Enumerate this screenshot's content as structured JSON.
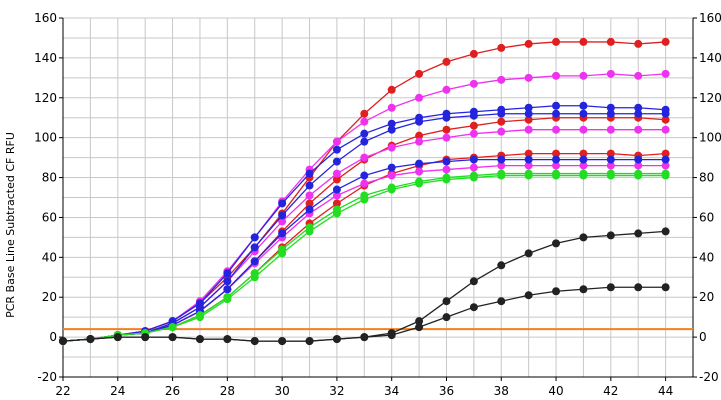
{
  "chart_data": {
    "type": "line",
    "ylabel": "PCR Base Line Subtracted CF RFU",
    "xlim": [
      22,
      45
    ],
    "ylim": [
      -20,
      160
    ],
    "x_ticks": [
      22,
      24,
      26,
      28,
      30,
      32,
      34,
      36,
      38,
      40,
      42,
      44
    ],
    "y_ticks": [
      -20,
      0,
      20,
      40,
      60,
      80,
      100,
      120,
      140,
      160
    ],
    "grid": true,
    "threshold": 4,
    "x": [
      22,
      23,
      24,
      25,
      26,
      27,
      28,
      29,
      30,
      31,
      32,
      33,
      34,
      35,
      36,
      37,
      38,
      39,
      40,
      41,
      42,
      43,
      44
    ],
    "series": [
      {
        "color": "#e02020",
        "values": [
          -2,
          -1,
          1,
          3,
          8,
          17,
          30,
          45,
          62,
          80,
          98,
          112,
          124,
          132,
          138,
          142,
          145,
          147,
          148,
          148,
          148,
          147,
          148
        ]
      },
      {
        "color": "#e02020",
        "values": [
          -2,
          -1,
          1,
          2,
          6,
          13,
          24,
          38,
          53,
          67,
          79,
          89,
          96,
          101,
          104,
          106,
          108,
          109,
          110,
          110,
          110,
          110,
          109
        ]
      },
      {
        "color": "#e02020",
        "values": [
          -2,
          -1,
          1,
          2,
          5,
          11,
          20,
          32,
          45,
          57,
          67,
          76,
          82,
          86,
          89,
          90,
          91,
          92,
          92,
          92,
          92,
          91,
          92
        ]
      },
      {
        "color": "#ee33ee",
        "values": [
          -2,
          -1,
          1,
          3,
          8,
          18,
          33,
          50,
          68,
          84,
          98,
          108,
          115,
          120,
          124,
          127,
          129,
          130,
          131,
          131,
          132,
          131,
          132
        ]
      },
      {
        "color": "#ee33ee",
        "values": [
          -2,
          -1,
          1,
          2,
          7,
          15,
          28,
          43,
          58,
          71,
          82,
          90,
          95,
          98,
          100,
          102,
          103,
          104,
          104,
          104,
          104,
          104,
          104
        ]
      },
      {
        "color": "#ee33ee",
        "values": [
          -2,
          -1,
          1,
          2,
          6,
          13,
          24,
          37,
          50,
          62,
          71,
          77,
          81,
          83,
          84,
          85,
          86,
          86,
          86,
          86,
          86,
          86,
          86
        ]
      },
      {
        "color": "#2424dd",
        "values": [
          -2,
          -1,
          1,
          3,
          8,
          17,
          32,
          50,
          67,
          82,
          94,
          102,
          107,
          110,
          112,
          113,
          114,
          115,
          116,
          116,
          115,
          115,
          114
        ]
      },
      {
        "color": "#2424dd",
        "values": [
          -2,
          -1,
          1,
          2,
          7,
          15,
          28,
          45,
          61,
          76,
          88,
          98,
          104,
          108,
          110,
          111,
          112,
          112,
          112,
          112,
          112,
          112,
          112
        ]
      },
      {
        "color": "#2424dd",
        "values": [
          -2,
          -1,
          1,
          2,
          6,
          13,
          24,
          38,
          52,
          64,
          74,
          81,
          85,
          87,
          88,
          89,
          89,
          89,
          89,
          89,
          89,
          89,
          89
        ]
      },
      {
        "color": "#22dd22",
        "values": [
          -2,
          -1,
          1,
          2,
          5,
          11,
          20,
          32,
          44,
          55,
          64,
          71,
          75,
          78,
          80,
          81,
          82,
          82,
          82,
          82,
          82,
          82,
          82
        ]
      },
      {
        "color": "#22dd22",
        "values": [
          -2,
          -1,
          1,
          2,
          5,
          10,
          19,
          30,
          42,
          53,
          62,
          69,
          74,
          77,
          79,
          80,
          81,
          81,
          81,
          81,
          81,
          81,
          81
        ]
      },
      {
        "color": "#222222",
        "values": [
          -2,
          -1,
          0,
          0,
          0,
          -1,
          -1,
          -2,
          -2,
          -2,
          -1,
          0,
          2,
          8,
          18,
          28,
          36,
          42,
          47,
          50,
          51,
          52,
          53
        ]
      },
      {
        "color": "#222222",
        "values": [
          -2,
          -1,
          0,
          0,
          0,
          -1,
          -1,
          -2,
          -2,
          -2,
          -1,
          0,
          1,
          5,
          10,
          15,
          18,
          21,
          23,
          24,
          25,
          25,
          25
        ]
      }
    ]
  },
  "colors": {
    "threshold": "#f08020",
    "grid": "#c8c8c8",
    "axis": "#000000"
  }
}
